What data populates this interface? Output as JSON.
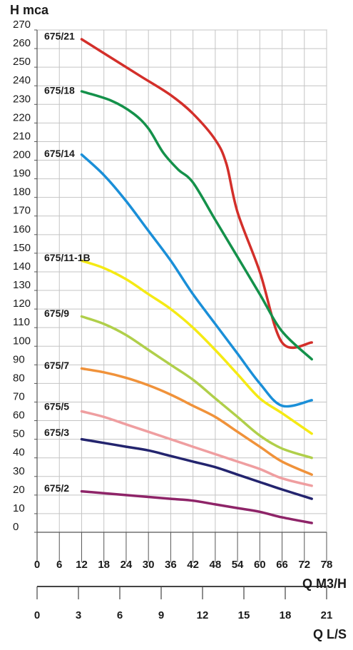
{
  "chart_data": {
    "type": "line",
    "ylabel": "H mca",
    "xlabel": "Q M3/H",
    "x2label": "Q L/S",
    "ylim": [
      0,
      270
    ],
    "y_ticks": [
      0,
      10,
      20,
      30,
      40,
      50,
      60,
      70,
      80,
      90,
      100,
      110,
      120,
      130,
      140,
      150,
      160,
      170,
      180,
      190,
      200,
      210,
      220,
      230,
      240,
      250,
      260,
      270
    ],
    "xlim": [
      0,
      78
    ],
    "x_ticks": [
      0,
      6,
      12,
      18,
      24,
      30,
      36,
      42,
      48,
      54,
      60,
      66,
      72,
      78
    ],
    "x2lim": [
      0,
      21
    ],
    "x2_ticks": [
      0,
      3,
      6,
      9,
      12,
      15,
      18,
      21
    ],
    "grid": true,
    "series": [
      {
        "name": "675/21",
        "color": "#d32f2a",
        "x": [
          12,
          20,
          28,
          36,
          42,
          48,
          51,
          54,
          60,
          66,
          74
        ],
        "y": [
          265,
          255,
          245,
          235,
          225,
          211,
          198,
          172,
          140,
          102,
          102
        ]
      },
      {
        "name": "675/18",
        "color": "#14914a",
        "x": [
          12,
          20,
          26,
          30,
          34,
          38,
          42,
          48,
          54,
          60,
          66,
          74
        ],
        "y": [
          237,
          232,
          225,
          217,
          204,
          195,
          188,
          168,
          148,
          128,
          108,
          93
        ]
      },
      {
        "name": "675/14",
        "color": "#1a8fd8",
        "x": [
          12,
          18,
          24,
          30,
          36,
          42,
          48,
          54,
          60,
          66,
          74
        ],
        "y": [
          203,
          192,
          178,
          162,
          146,
          128,
          112,
          96,
          80,
          68,
          71
        ]
      },
      {
        "name": "675/11-1B",
        "color": "#f5ea14",
        "x": [
          12,
          18,
          24,
          30,
          36,
          42,
          48,
          54,
          60,
          66,
          74
        ],
        "y": [
          146,
          142,
          136,
          128,
          120,
          110,
          98,
          85,
          72,
          64,
          53
        ]
      },
      {
        "name": "675/9",
        "color": "#b0cf4a",
        "x": [
          12,
          18,
          24,
          30,
          36,
          42,
          48,
          54,
          60,
          66,
          74
        ],
        "y": [
          116,
          112,
          106,
          98,
          90,
          82,
          72,
          62,
          52,
          45,
          40
        ]
      },
      {
        "name": "675/7",
        "color": "#f0923a",
        "x": [
          12,
          18,
          24,
          30,
          36,
          42,
          48,
          54,
          60,
          66,
          74
        ],
        "y": [
          88,
          86,
          83,
          79,
          74,
          68,
          62,
          54,
          46,
          38,
          31
        ]
      },
      {
        "name": "675/5",
        "color": "#ef9ea0",
        "x": [
          12,
          18,
          24,
          30,
          36,
          42,
          48,
          54,
          60,
          66,
          74
        ],
        "y": [
          65,
          62,
          58,
          54,
          50,
          46,
          42,
          38,
          34,
          29,
          25
        ]
      },
      {
        "name": "675/3",
        "color": "#23246e",
        "x": [
          12,
          18,
          24,
          30,
          36,
          42,
          48,
          54,
          60,
          66,
          74
        ],
        "y": [
          50,
          48,
          46,
          44,
          41,
          38,
          35,
          31,
          27,
          23,
          18
        ]
      },
      {
        "name": "675/2",
        "color": "#8e2468",
        "x": [
          12,
          18,
          24,
          30,
          36,
          42,
          48,
          54,
          60,
          66,
          74
        ],
        "y": [
          22,
          21,
          20,
          19,
          18,
          17,
          15,
          13,
          11,
          8,
          5
        ]
      }
    ],
    "label_y": [
      264,
      235,
      201,
      145,
      115,
      87,
      65,
      51,
      21
    ]
  }
}
